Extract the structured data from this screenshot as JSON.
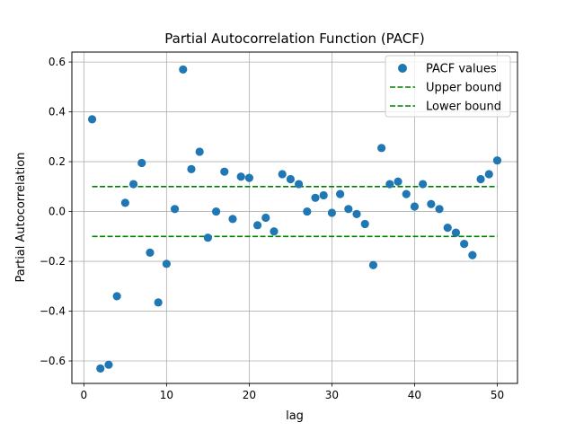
{
  "chart_data": {
    "type": "scatter",
    "title": "Partial Autocorrelation Function (PACF)",
    "xlabel": "lag",
    "ylabel": "Partial Autocorrelation",
    "xlim": [
      -1.45,
      52.45
    ],
    "ylim": [
      -0.69,
      0.64
    ],
    "xticks": [
      0,
      10,
      20,
      30,
      40,
      50
    ],
    "yticks": [
      -0.6,
      -0.4,
      -0.2,
      0.0,
      0.2,
      0.4,
      0.6
    ],
    "xtick_labels": [
      "0",
      "10",
      "20",
      "30",
      "40",
      "50"
    ],
    "ytick_labels": [
      "−0.6",
      "−0.4",
      "−0.2",
      "0.0",
      "0.2",
      "0.4",
      "0.6"
    ],
    "grid": true,
    "legend_position": "top-right",
    "colors": {
      "points": "#1f77b4",
      "bounds": "#008000",
      "grid": "#b0b0b0"
    },
    "series": [
      {
        "name": "PACF values",
        "kind": "scatter",
        "x": [
          1,
          2,
          3,
          4,
          5,
          6,
          7,
          8,
          9,
          10,
          11,
          12,
          13,
          14,
          15,
          16,
          17,
          18,
          19,
          20,
          21,
          22,
          23,
          24,
          25,
          26,
          27,
          28,
          29,
          30,
          31,
          32,
          33,
          34,
          35,
          36,
          37,
          38,
          39,
          40,
          41,
          42,
          43,
          44,
          45,
          46,
          47,
          48,
          49,
          50
        ],
        "y": [
          0.37,
          -0.63,
          -0.615,
          -0.34,
          0.035,
          0.11,
          0.195,
          -0.165,
          -0.365,
          -0.21,
          0.01,
          0.57,
          0.17,
          0.24,
          -0.105,
          0.0,
          0.16,
          -0.03,
          0.14,
          0.135,
          -0.055,
          -0.025,
          -0.08,
          0.15,
          0.13,
          0.11,
          0.0,
          0.055,
          0.065,
          -0.005,
          0.07,
          0.01,
          -0.01,
          -0.05,
          -0.215,
          0.255,
          0.11,
          0.12,
          0.07,
          0.02,
          0.11,
          0.03,
          0.01,
          -0.065,
          -0.085,
          -0.13,
          -0.175,
          0.13,
          0.15,
          0.205
        ]
      },
      {
        "name": "Upper bound",
        "kind": "hline",
        "x": [
          1,
          50
        ],
        "y": 0.1
      },
      {
        "name": "Lower bound",
        "kind": "hline",
        "x": [
          1,
          50
        ],
        "y": -0.1
      }
    ]
  }
}
